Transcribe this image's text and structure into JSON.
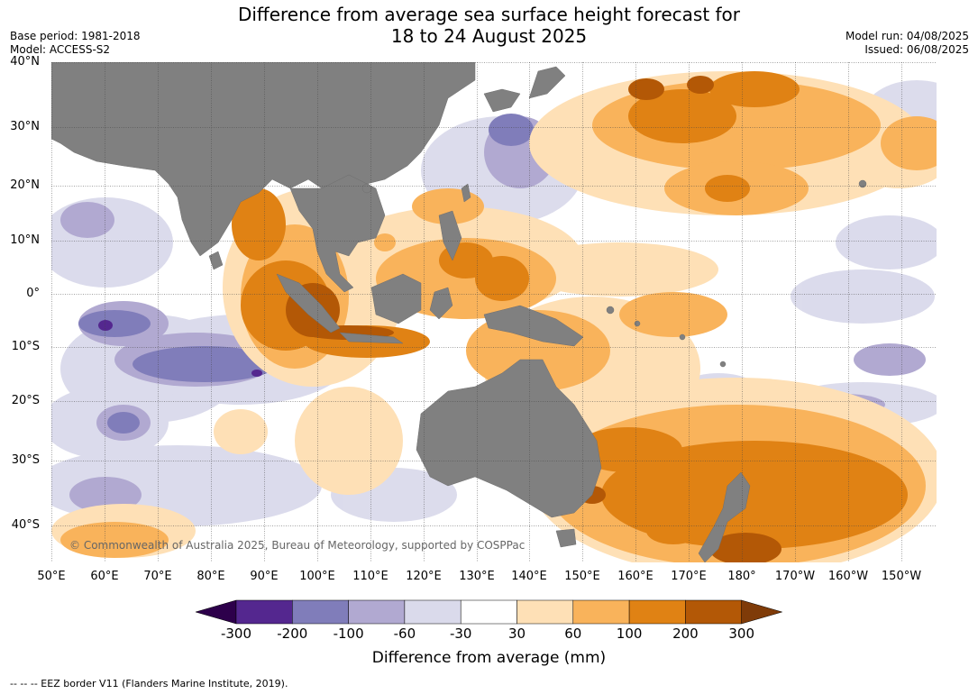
{
  "title": {
    "line1": "Difference from average sea surface height forecast for",
    "line2": "18 to 24 August 2025"
  },
  "meta_left": {
    "base_period": "Base period: 1981-2018",
    "model": "Model: ACCESS-S2"
  },
  "meta_right": {
    "model_run": "Model run: 04/08/2025",
    "issued": "Issued: 06/08/2025"
  },
  "map": {
    "copyright": "© Commonwealth of Australia 2025, Bureau of Meteorology, supported by COSPPac",
    "land_color": "#808080",
    "lat_labels": [
      "40°N",
      "30°N",
      "20°N",
      "10°N",
      "0°",
      "10°S",
      "20°S",
      "30°S",
      "40°S"
    ],
    "lon_labels": [
      "50°E",
      "60°E",
      "70°E",
      "80°E",
      "90°E",
      "100°E",
      "110°E",
      "120°E",
      "130°E",
      "140°E",
      "150°E",
      "160°E",
      "170°E",
      "180°",
      "170°W",
      "160°W",
      "150°W"
    ]
  },
  "colorbar": {
    "ticks": [
      "-300",
      "-200",
      "-100",
      "-60",
      "-30",
      "30",
      "60",
      "100",
      "200",
      "300"
    ],
    "colors": [
      "#54278f",
      "#807dba",
      "#b1a9d1",
      "#dadaeb",
      "#ffffff",
      "#fee0b6",
      "#f9b35b",
      "#e08214",
      "#b35806"
    ],
    "under_color": "#2d004b",
    "over_color": "#7f3b08",
    "label": "Difference from average (mm)"
  },
  "footnote": "--  --  -- EEZ border V11 (Flanders Marine Institute, 2019)."
}
